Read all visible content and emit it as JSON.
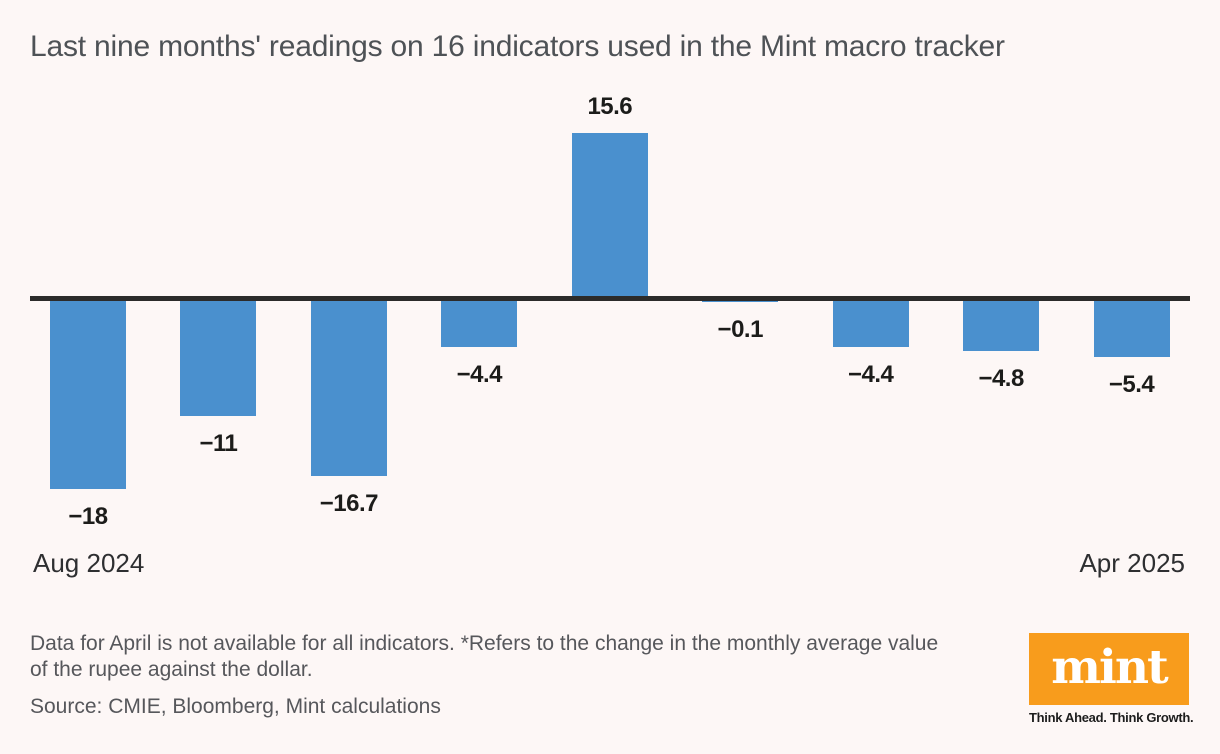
{
  "chart_data": {
    "type": "bar",
    "title": "Last nine months' readings on 16 indicators used in the Mint macro tracker",
    "values": [
      -18,
      -11,
      -16.7,
      -4.4,
      15.6,
      -0.1,
      -4.4,
      -4.8,
      -5.4
    ],
    "labels": [
      "−18",
      "−11",
      "−16.7",
      "−4.4",
      "15.6",
      "−0.1",
      "−4.4",
      "−4.8",
      "−5.4"
    ],
    "x_start_label": "Aug 2024",
    "x_end_label": "Apr 2025",
    "baseline": 0,
    "ylim": [
      -18,
      15.6
    ],
    "grid": false,
    "legend": false,
    "bar_color": "#4a90ce",
    "axis_color": "#2c2b2a"
  },
  "footnote": {
    "line1": "Data for April is not available for all indicators. *Refers to the change in the monthly average value",
    "line2": "of the rupee against the dollar."
  },
  "source": "Source: CMIE, Bloomberg, Mint calculations",
  "logo": {
    "text": "mint",
    "tagline": "Think Ahead. Think Growth.",
    "bg_color": "#f89c1c"
  }
}
